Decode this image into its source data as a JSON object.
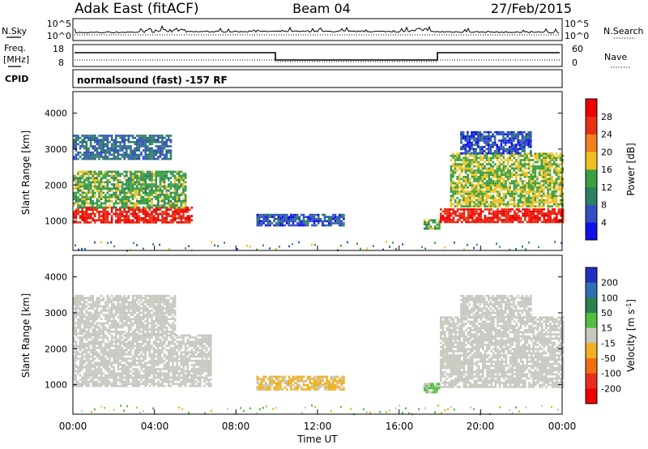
{
  "header": {
    "station": "Adak East (fitACF)",
    "beam": "Beam 04",
    "date": "27/Feb/2015"
  },
  "params": {
    "nsky_label": "N.Sky",
    "nsearch_label": "N.Search",
    "freq_label": "Freq.",
    "freq_unit": "[MHz]",
    "nave_label": "Nave",
    "cpid_label": "CPID",
    "cpid_value": "normalsound (fast) -157 RF",
    "noise_ticks": [
      "10^5",
      "10^0"
    ],
    "freq_ticks": [
      "18",
      "8"
    ],
    "nave_ticks": [
      "60",
      "0"
    ]
  },
  "axes": {
    "ylabel": "Slant Range [km]",
    "xlabel": "Time UT",
    "yticks": [
      "1000",
      "2000",
      "3000",
      "4000"
    ],
    "xticks": [
      "00:00",
      "04:00",
      "08:00",
      "12:00",
      "16:00",
      "20:00",
      "00:00"
    ]
  },
  "colorbars": {
    "power": {
      "label": "Power [dB]",
      "ticks": [
        "4",
        "8",
        "12",
        "16",
        "20",
        "24",
        "28"
      ],
      "colors": [
        "#1010e8",
        "#3050c0",
        "#2d8060",
        "#3aa040",
        "#f0c020",
        "#f08020",
        "#e83010",
        "#f00000"
      ]
    },
    "velocity": {
      "label": "Velocity [m s",
      "label_sup": "-1",
      "label_end": "]",
      "ticks": [
        "200",
        "100",
        "50",
        "15",
        "-15",
        "-50",
        "-100",
        "-200"
      ],
      "colors": [
        "#2030c0",
        "#3070b0",
        "#2d8050",
        "#50c040",
        "#c8c8c0",
        "#f0b020",
        "#f07010",
        "#e83020",
        "#f00000"
      ]
    }
  },
  "chart_data": [
    {
      "type": "heatmap",
      "title": "Power",
      "x_range_hours": [
        0,
        24
      ],
      "y_range_km": [
        180,
        4600
      ],
      "colorbar_range_db": [
        0,
        32
      ],
      "regions": [
        {
          "t": [
            0.0,
            5.8
          ],
          "range_km": [
            950,
            1400
          ],
          "power_db": 28
        },
        {
          "t": [
            0.0,
            5.5
          ],
          "range_km": [
            1400,
            2400
          ],
          "power_db": 14
        },
        {
          "t": [
            0.0,
            4.8
          ],
          "range_km": [
            2700,
            3400
          ],
          "power_db": 8
        },
        {
          "t": [
            9.0,
            13.3
          ],
          "range_km": [
            880,
            1200
          ],
          "power_db": 6
        },
        {
          "t": [
            17.2,
            18.0
          ],
          "range_km": [
            800,
            1050
          ],
          "power_db": 14
        },
        {
          "t": [
            18.0,
            24.0
          ],
          "range_km": [
            950,
            1350
          ],
          "power_db": 28
        },
        {
          "t": [
            18.5,
            24.0
          ],
          "range_km": [
            1400,
            2900
          ],
          "power_db": 16
        },
        {
          "t": [
            19.0,
            22.5
          ],
          "range_km": [
            2900,
            3500
          ],
          "power_db": 6
        }
      ]
    },
    {
      "type": "heatmap",
      "title": "Velocity",
      "x_range_hours": [
        0,
        24
      ],
      "y_range_km": [
        180,
        4600
      ],
      "colorbar_range_ms": [
        -240,
        240
      ],
      "regions": [
        {
          "t": [
            0.0,
            6.8
          ],
          "range_km": [
            950,
            2400
          ],
          "velocity_ms": 0
        },
        {
          "t": [
            0.0,
            5.0
          ],
          "range_km": [
            2400,
            3500
          ],
          "velocity_ms": 0
        },
        {
          "t": [
            9.0,
            13.3
          ],
          "range_km": [
            880,
            1250
          ],
          "velocity_ms": -20
        },
        {
          "t": [
            17.2,
            18.0
          ],
          "range_km": [
            800,
            1050
          ],
          "velocity_ms": 20
        },
        {
          "t": [
            18.0,
            24.0
          ],
          "range_km": [
            950,
            2900
          ],
          "velocity_ms": 0
        },
        {
          "t": [
            19.0,
            22.5
          ],
          "range_km": [
            2900,
            3500
          ],
          "velocity_ms": 0
        }
      ]
    }
  ]
}
